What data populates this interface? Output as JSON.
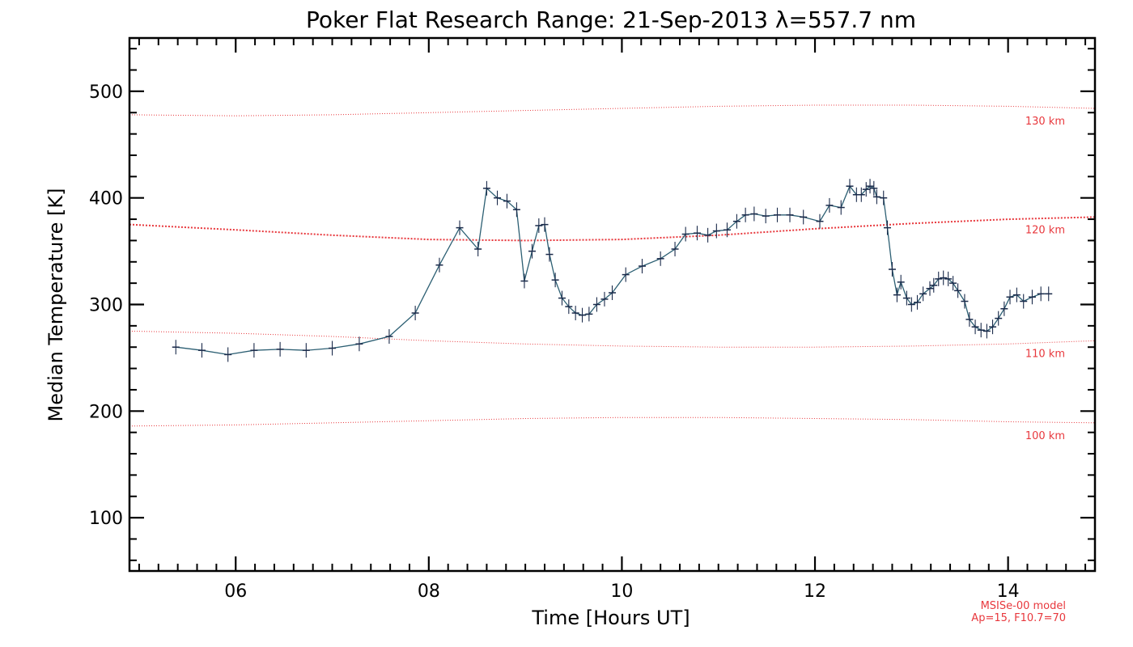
{
  "chart_data": {
    "type": "line",
    "title": "Poker Flat Research Range: 21-Sep-2013 λ=557.7 nm",
    "xlabel": "Time [Hours UT]",
    "ylabel": "Median Temperature [K]",
    "xlim": [
      4.9,
      14.9
    ],
    "ylim": [
      50,
      550
    ],
    "xticks": [
      {
        "value": 6,
        "label": "06"
      },
      {
        "value": 8,
        "label": "08"
      },
      {
        "value": 10,
        "label": "10"
      },
      {
        "value": 12,
        "label": "12"
      },
      {
        "value": 14,
        "label": "14"
      }
    ],
    "yticks": [
      {
        "value": 100,
        "label": "100"
      },
      {
        "value": 200,
        "label": "200"
      },
      {
        "value": 300,
        "label": "300"
      },
      {
        "value": 400,
        "label": "400"
      },
      {
        "value": 500,
        "label": "500"
      }
    ],
    "grid": false,
    "series": [
      {
        "color": "#1a2a4a",
        "x": [
          5.38,
          5.65,
          5.92,
          6.19,
          6.46,
          6.73,
          7.0,
          7.28,
          7.59,
          7.86,
          8.11,
          8.32,
          8.51,
          8.6,
          8.71,
          8.81,
          8.91,
          8.99,
          9.07,
          9.14,
          9.2,
          9.25,
          9.31,
          9.38,
          9.45,
          9.52,
          9.59,
          9.66,
          9.74,
          9.82,
          9.9,
          10.04,
          10.21,
          10.4,
          10.55,
          10.66,
          10.78,
          10.89,
          10.98,
          11.09,
          11.19,
          11.28,
          11.37,
          11.49,
          11.61,
          11.74,
          11.88,
          12.05,
          12.15,
          12.27,
          12.36,
          12.43,
          12.48,
          12.53,
          12.57,
          12.61,
          12.64,
          12.71,
          12.75,
          12.8,
          12.85,
          12.89,
          12.95,
          13.0,
          13.06,
          13.12,
          13.19,
          13.23,
          13.28,
          13.33,
          13.38,
          13.43,
          13.48,
          13.55,
          13.6,
          13.66,
          13.72,
          13.78,
          13.84,
          13.9,
          13.96,
          14.02,
          14.09,
          14.16,
          14.25,
          14.34,
          14.42
        ],
        "values": [
          260,
          257,
          253,
          257,
          258,
          257,
          259,
          263,
          270,
          292,
          337,
          372,
          352,
          409,
          400,
          397,
          389,
          322,
          350,
          374,
          375,
          347,
          323,
          306,
          298,
          292,
          290,
          291,
          300,
          305,
          311,
          328,
          336,
          343,
          352,
          366,
          367,
          365,
          369,
          370,
          378,
          384,
          385,
          383,
          384,
          384,
          382,
          378,
          393,
          391,
          411,
          403,
          403,
          408,
          411,
          409,
          401,
          400,
          372,
          333,
          309,
          321,
          306,
          300,
          302,
          310,
          315,
          318,
          324,
          325,
          324,
          320,
          313,
          303,
          286,
          279,
          276,
          275,
          279,
          287,
          296,
          307,
          309,
          303,
          307,
          310,
          310
        ]
      }
    ],
    "model_curves": [
      {
        "label": "130 km",
        "color": "#e8383d",
        "x": [
          4.9,
          6.0,
          7.0,
          8.0,
          9.0,
          10.0,
          11.0,
          12.0,
          13.0,
          14.0,
          14.9
        ],
        "values": [
          478,
          477,
          478,
          480,
          482,
          484,
          486,
          487,
          487,
          486,
          484
        ]
      },
      {
        "label": "120 km",
        "color": "#e8383d",
        "x": [
          4.9,
          6.0,
          7.0,
          8.0,
          9.0,
          10.0,
          11.0,
          12.0,
          13.0,
          14.0,
          14.9
        ],
        "values": [
          375,
          370,
          365,
          361,
          360,
          361,
          365,
          371,
          376,
          380,
          382
        ]
      },
      {
        "label": "110 km",
        "color": "#e8383d",
        "x": [
          4.9,
          6.0,
          7.0,
          8.0,
          9.0,
          10.0,
          11.0,
          12.0,
          13.0,
          14.0,
          14.9
        ],
        "values": [
          275,
          273,
          270,
          266,
          263,
          261,
          260,
          260,
          261,
          263,
          266
        ]
      },
      {
        "label": "100 km",
        "color": "#e8383d",
        "x": [
          4.9,
          6.0,
          7.0,
          8.0,
          9.0,
          10.0,
          11.0,
          12.0,
          13.0,
          14.0,
          14.9
        ],
        "values": [
          186,
          187,
          189,
          191,
          193,
          194,
          194,
          193,
          192,
          190,
          189
        ]
      }
    ],
    "notes": [
      "MSISe-00 model",
      "Ap=15, F10.7=70"
    ]
  }
}
